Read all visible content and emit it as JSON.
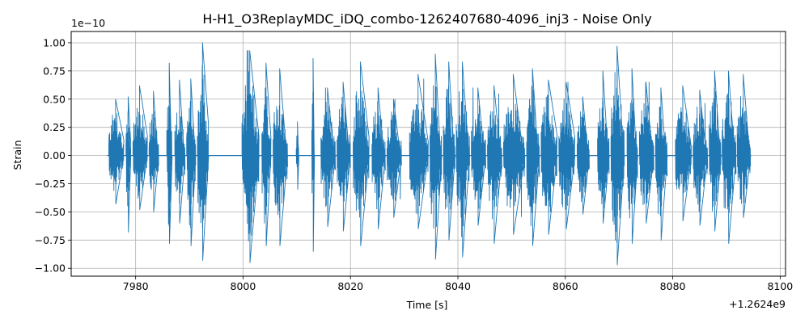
{
  "chart_data": {
    "type": "line",
    "title": "H-H1_O3ReplayMDC_iDQ_combo-1262407680-4096_inj3 - Noise Only",
    "xlabel": "Time [s]",
    "ylabel": "Strain",
    "x_offset_label": "+1.2624e9",
    "y_scale_label": "1e−10",
    "xlim": [
      7968,
      8101
    ],
    "ylim": [
      -1.07,
      1.1
    ],
    "x_ticks": [
      7980,
      8000,
      8020,
      8040,
      8060,
      8080,
      8100
    ],
    "x_tick_labels": [
      "7980",
      "8000",
      "8020",
      "8040",
      "8060",
      "8080",
      "8100"
    ],
    "y_ticks": [
      -1.0,
      -0.75,
      -0.5,
      -0.25,
      0.0,
      0.25,
      0.5,
      0.75,
      1.0
    ],
    "y_tick_labels": [
      "−1.00",
      "−0.75",
      "−0.50",
      "−0.25",
      "0.00",
      "0.25",
      "0.50",
      "0.75",
      "1.00"
    ],
    "grid": true,
    "line_color": "#1f77b4",
    "series": [
      {
        "x_start": 7974.7,
        "x_end": 8094.6,
        "bursts": [
          {
            "start": 7975.0,
            "end": 7977.8,
            "max": 0.5,
            "min": -0.43
          },
          {
            "start": 7978.2,
            "end": 7979.1,
            "max": 0.52,
            "min": -0.68
          },
          {
            "start": 7979.5,
            "end": 7982.2,
            "max": 0.62,
            "min": -0.48
          },
          {
            "start": 7982.5,
            "end": 7984.3,
            "max": 0.57,
            "min": -0.5
          },
          {
            "start": 7985.8,
            "end": 7986.8,
            "max": 0.82,
            "min": -0.78
          },
          {
            "start": 7987.3,
            "end": 7989.2,
            "max": 0.67,
            "min": -0.6
          },
          {
            "start": 7989.5,
            "end": 7991.2,
            "max": 0.68,
            "min": -0.8
          },
          {
            "start": 7991.5,
            "end": 7993.6,
            "max": 1.0,
            "min": -0.93
          },
          {
            "start": 7999.8,
            "end": 8003.0,
            "max": 0.93,
            "min": -0.95
          },
          {
            "start": 8003.5,
            "end": 8005.2,
            "max": 0.82,
            "min": -0.8
          },
          {
            "start": 8005.6,
            "end": 8008.3,
            "max": 0.77,
            "min": -0.8
          },
          {
            "start": 8009.9,
            "end": 8010.4,
            "max": 0.3,
            "min": -0.3
          },
          {
            "start": 8012.8,
            "end": 8013.3,
            "max": 0.86,
            "min": -0.85
          },
          {
            "start": 8014.5,
            "end": 8017.2,
            "max": 0.6,
            "min": -0.63
          },
          {
            "start": 8017.5,
            "end": 8020.0,
            "max": 0.65,
            "min": -0.67
          },
          {
            "start": 8020.5,
            "end": 8023.5,
            "max": 0.83,
            "min": -0.8
          },
          {
            "start": 8024.0,
            "end": 8026.5,
            "max": 0.6,
            "min": -0.65
          },
          {
            "start": 8026.8,
            "end": 8029.5,
            "max": 0.5,
            "min": -0.55
          },
          {
            "start": 8031.0,
            "end": 8034.5,
            "max": 0.72,
            "min": -0.65
          },
          {
            "start": 8034.8,
            "end": 8037.0,
            "max": 0.9,
            "min": -0.92
          },
          {
            "start": 8037.3,
            "end": 8039.5,
            "max": 0.83,
            "min": -0.75
          },
          {
            "start": 8039.7,
            "end": 8042.2,
            "max": 0.83,
            "min": -0.9
          },
          {
            "start": 8042.5,
            "end": 8045.2,
            "max": 0.6,
            "min": -0.62
          },
          {
            "start": 8045.5,
            "end": 8048.2,
            "max": 0.62,
            "min": -0.78
          },
          {
            "start": 8048.5,
            "end": 8052.5,
            "max": 0.72,
            "min": -0.7
          },
          {
            "start": 8052.8,
            "end": 8055.2,
            "max": 0.77,
            "min": -0.8
          },
          {
            "start": 8055.5,
            "end": 8058.5,
            "max": 0.67,
            "min": -0.7
          },
          {
            "start": 8058.8,
            "end": 8061.8,
            "max": 0.65,
            "min": -0.65
          },
          {
            "start": 8062.2,
            "end": 8064.5,
            "max": 0.52,
            "min": -0.52
          },
          {
            "start": 8066.0,
            "end": 8068.2,
            "max": 0.75,
            "min": -0.6
          },
          {
            "start": 8068.5,
            "end": 8071.0,
            "max": 0.97,
            "min": -0.97
          },
          {
            "start": 8071.5,
            "end": 8073.5,
            "max": 0.77,
            "min": -0.78
          },
          {
            "start": 8073.8,
            "end": 8076.5,
            "max": 0.65,
            "min": -0.6
          },
          {
            "start": 8076.8,
            "end": 8079.0,
            "max": 0.6,
            "min": -0.75
          },
          {
            "start": 8080.5,
            "end": 8083.5,
            "max": 0.62,
            "min": -0.58
          },
          {
            "start": 8083.8,
            "end": 8086.5,
            "max": 0.58,
            "min": -0.62
          },
          {
            "start": 8086.8,
            "end": 8089.0,
            "max": 0.75,
            "min": -0.67
          },
          {
            "start": 8089.2,
            "end": 8091.8,
            "max": 0.75,
            "min": -0.78
          },
          {
            "start": 8092.0,
            "end": 8094.5,
            "max": 0.72,
            "min": -0.55
          }
        ]
      }
    ]
  }
}
